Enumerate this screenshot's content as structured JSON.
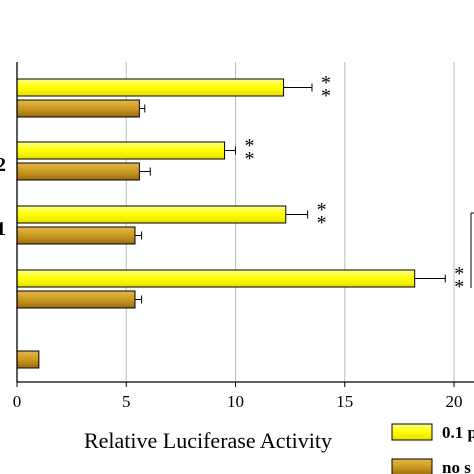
{
  "chart_data": {
    "type": "bar",
    "orientation": "horizontal",
    "xlabel": "Relative Luciferase Activity",
    "xlim": [
      0,
      20
    ],
    "xticks": [
      0,
      5,
      10,
      15,
      20
    ],
    "grid": "vertical",
    "categories": [
      {
        "label": "",
        "high": 12.2,
        "high_err": 1.3,
        "low": 5.6,
        "low_err": 0.25,
        "mark": "* *"
      },
      {
        "label": "2",
        "high": 9.5,
        "high_err": 0.5,
        "low": 5.6,
        "low_err": 0.5,
        "mark": "* *"
      },
      {
        "label": "1",
        "high": 12.3,
        "high_err": 1.0,
        "low": 5.4,
        "low_err": 0.3,
        "mark": "* *"
      },
      {
        "label": "",
        "high": 18.2,
        "high_err": 1.4,
        "low": 5.4,
        "low_err": 0.3,
        "mark": "* *"
      },
      {
        "label": "",
        "high": null,
        "high_err": null,
        "low": 1.0,
        "low_err": null,
        "mark": ""
      }
    ],
    "series": [
      {
        "name": "0.1 p",
        "key": "high",
        "color": "#ffff00"
      },
      {
        "name": "no s",
        "key": "low",
        "color": "#c8961e"
      }
    ],
    "legend_position": "bottom-right"
  }
}
